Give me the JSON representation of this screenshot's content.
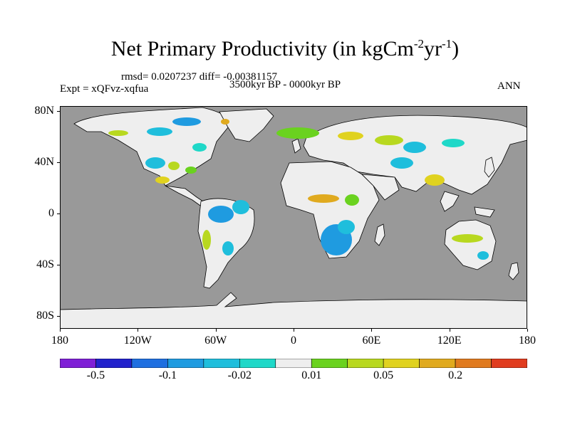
{
  "title": {
    "main": "Net Primary Productivity (in kgCm",
    "exp1": "-2",
    "mid": "yr",
    "exp2": "-1",
    "end": ")"
  },
  "stats": "rmsd= 0.0207237 diff= -0.00381157",
  "period": "3500kyr BP - 0000kyr BP",
  "experiment": "Expt = xQFvz-xqfua",
  "season": "ANN",
  "map": {
    "ocean_color": "#999999",
    "land_color": "#eeeeee",
    "lat_labels": [
      "80N",
      "40N",
      "0",
      "40S",
      "80S"
    ],
    "lon_labels": [
      "180",
      "120W",
      "60W",
      "0",
      "60E",
      "120E",
      "180"
    ]
  },
  "colorbar": {
    "colors": [
      "#7f1fd6",
      "#2222cc",
      "#1f6fe0",
      "#1f9be0",
      "#1fbedc",
      "#1fd8c8",
      "#eeeeee",
      "#6ad21f",
      "#b8d81f",
      "#e0d21f",
      "#e0aa1f",
      "#e07a1f",
      "#e03c1f"
    ],
    "labels": [
      "-0.5",
      "-0.1",
      "-0.02",
      "0.01",
      "0.05",
      "0.2"
    ]
  }
}
